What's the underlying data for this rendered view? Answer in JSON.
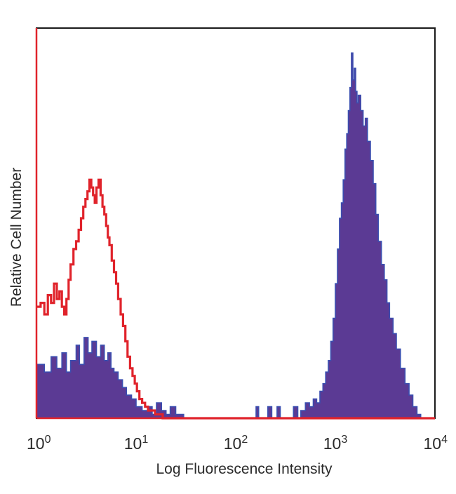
{
  "chart_data": {
    "type": "area",
    "xlabel": "Log Fluorescence Intensity",
    "ylabel": "Relative Cell Number",
    "x_scale": "log",
    "xlim": [
      1,
      10000
    ],
    "ylim": [
      0,
      100
    ],
    "x_ticks": [
      {
        "base": "10",
        "exp": "0",
        "value": 1
      },
      {
        "base": "10",
        "exp": "1",
        "value": 10
      },
      {
        "base": "10",
        "exp": "2",
        "value": 100
      },
      {
        "base": "10",
        "exp": "3",
        "value": 1000
      },
      {
        "base": "10",
        "exp": "4",
        "value": 10000
      }
    ],
    "grid": false,
    "legend": "none",
    "series": [
      {
        "style": "filled",
        "color": "#5b3a94",
        "edge_color": "#3b4fb0",
        "points": [
          [
            1.0,
            14
          ],
          [
            1.2,
            12
          ],
          [
            1.4,
            16
          ],
          [
            1.6,
            13
          ],
          [
            1.8,
            17
          ],
          [
            2.0,
            12
          ],
          [
            2.2,
            15
          ],
          [
            2.5,
            19
          ],
          [
            2.7,
            14
          ],
          [
            3.0,
            21
          ],
          [
            3.3,
            17
          ],
          [
            3.6,
            20
          ],
          [
            4.0,
            16
          ],
          [
            4.4,
            19
          ],
          [
            4.8,
            15
          ],
          [
            5.2,
            17
          ],
          [
            5.6,
            13
          ],
          [
            6.0,
            12
          ],
          [
            6.6,
            10
          ],
          [
            7.3,
            8
          ],
          [
            8.0,
            6
          ],
          [
            9.0,
            5
          ],
          [
            10.0,
            3
          ],
          [
            11.5,
            2
          ],
          [
            13.0,
            3
          ],
          [
            14.5,
            1
          ],
          [
            16.0,
            4
          ],
          [
            18.0,
            2
          ],
          [
            20.0,
            1
          ],
          [
            22.0,
            3
          ],
          [
            25.0,
            1
          ],
          [
            30.0,
            0
          ],
          [
            100.0,
            0
          ],
          [
            150.0,
            0
          ],
          [
            160.0,
            3
          ],
          [
            170.0,
            0
          ],
          [
            200.0,
            0
          ],
          [
            210.0,
            3
          ],
          [
            230.0,
            0
          ],
          [
            260.0,
            3
          ],
          [
            280.0,
            0
          ],
          [
            350.0,
            0
          ],
          [
            380.0,
            3
          ],
          [
            420.0,
            0
          ],
          [
            450.0,
            2
          ],
          [
            500.0,
            4
          ],
          [
            550.0,
            3
          ],
          [
            600.0,
            5
          ],
          [
            650.0,
            4
          ],
          [
            700.0,
            7
          ],
          [
            750.0,
            9
          ],
          [
            800.0,
            12
          ],
          [
            850.0,
            15
          ],
          [
            900.0,
            20
          ],
          [
            950.0,
            26
          ],
          [
            1000.0,
            35
          ],
          [
            1050.0,
            44
          ],
          [
            1100.0,
            52
          ],
          [
            1150.0,
            56
          ],
          [
            1200.0,
            62
          ],
          [
            1250.0,
            70
          ],
          [
            1300.0,
            74
          ],
          [
            1350.0,
            80
          ],
          [
            1400.0,
            86
          ],
          [
            1450.0,
            95
          ],
          [
            1500.0,
            88
          ],
          [
            1550.0,
            91
          ],
          [
            1600.0,
            85
          ],
          [
            1650.0,
            82
          ],
          [
            1700.0,
            84
          ],
          [
            1800.0,
            80
          ],
          [
            1900.0,
            76
          ],
          [
            2000.0,
            78
          ],
          [
            2100.0,
            72
          ],
          [
            2250.0,
            67
          ],
          [
            2400.0,
            61
          ],
          [
            2550.0,
            53
          ],
          [
            2700.0,
            46
          ],
          [
            2900.0,
            40
          ],
          [
            3100.0,
            36
          ],
          [
            3300.0,
            30
          ],
          [
            3500.0,
            26
          ],
          [
            3800.0,
            22
          ],
          [
            4100.0,
            18
          ],
          [
            4500.0,
            13
          ],
          [
            5000.0,
            9
          ],
          [
            5500.0,
            6
          ],
          [
            6000.0,
            3
          ],
          [
            6600.0,
            1
          ],
          [
            7200.0,
            0
          ]
        ]
      },
      {
        "style": "line",
        "color": "#e0232b",
        "points": [
          [
            1.0,
            29
          ],
          [
            1.1,
            30
          ],
          [
            1.2,
            27
          ],
          [
            1.3,
            32
          ],
          [
            1.4,
            30
          ],
          [
            1.5,
            35
          ],
          [
            1.6,
            31
          ],
          [
            1.7,
            33
          ],
          [
            1.8,
            29
          ],
          [
            1.9,
            27
          ],
          [
            2.0,
            31
          ],
          [
            2.1,
            36
          ],
          [
            2.2,
            40
          ],
          [
            2.35,
            44
          ],
          [
            2.5,
            46
          ],
          [
            2.65,
            49
          ],
          [
            2.8,
            52
          ],
          [
            2.95,
            55
          ],
          [
            3.1,
            57
          ],
          [
            3.25,
            59
          ],
          [
            3.4,
            62
          ],
          [
            3.55,
            60
          ],
          [
            3.7,
            58
          ],
          [
            3.85,
            56
          ],
          [
            4.0,
            60
          ],
          [
            4.2,
            62
          ],
          [
            4.4,
            58
          ],
          [
            4.6,
            55
          ],
          [
            4.8,
            53
          ],
          [
            5.0,
            50
          ],
          [
            5.2,
            47
          ],
          [
            5.4,
            45
          ],
          [
            5.7,
            41
          ],
          [
            6.0,
            38
          ],
          [
            6.3,
            35
          ],
          [
            6.6,
            31
          ],
          [
            7.0,
            27
          ],
          [
            7.4,
            24
          ],
          [
            7.8,
            20
          ],
          [
            8.2,
            16
          ],
          [
            8.7,
            13
          ],
          [
            9.2,
            11
          ],
          [
            9.7,
            9
          ],
          [
            10.2,
            7
          ],
          [
            10.8,
            5
          ],
          [
            11.5,
            4
          ],
          [
            12.3,
            3
          ],
          [
            13.2,
            2
          ],
          [
            14.2,
            2
          ],
          [
            15.5,
            1
          ],
          [
            17.0,
            1
          ],
          [
            18.5,
            0
          ],
          [
            20.0,
            0
          ],
          [
            10000.0,
            0
          ]
        ]
      }
    ]
  }
}
